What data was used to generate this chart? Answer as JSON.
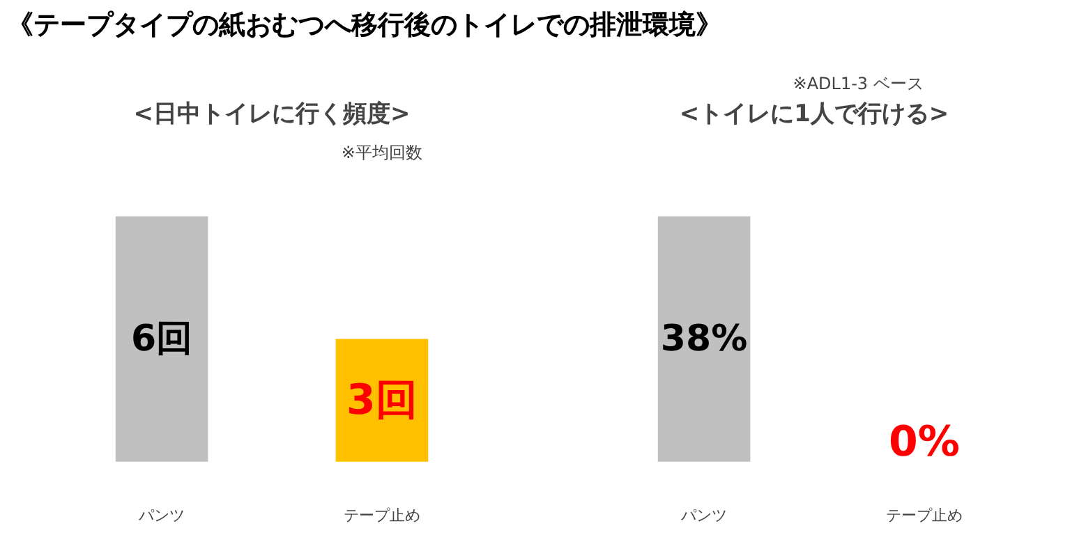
{
  "chart_data": [
    {
      "type": "bar",
      "title": "《テープタイプの紙おむつへ移行後のトイレでの排泄環境》",
      "subtitle": "<日中トイレに行く頻度>",
      "annotations": [
        "※平均回数"
      ],
      "categories": [
        "パンツ",
        "テープ止め"
      ],
      "values": [
        6,
        3
      ],
      "colors": [
        "#c0c0c0",
        "#ffc000"
      ],
      "value_labels": [
        "6回",
        "3回"
      ]
    },
    {
      "type": "bar",
      "subtitle": "<トイレに1人で行ける>",
      "annotations": [
        "※ADL1-3 ベース"
      ],
      "categories": [
        "パンツ",
        "テープ止め"
      ],
      "values": [
        38,
        0
      ],
      "colors": [
        "#c0c0c0",
        "#ffc000"
      ],
      "value_labels": [
        "38%",
        "0%"
      ]
    }
  ]
}
